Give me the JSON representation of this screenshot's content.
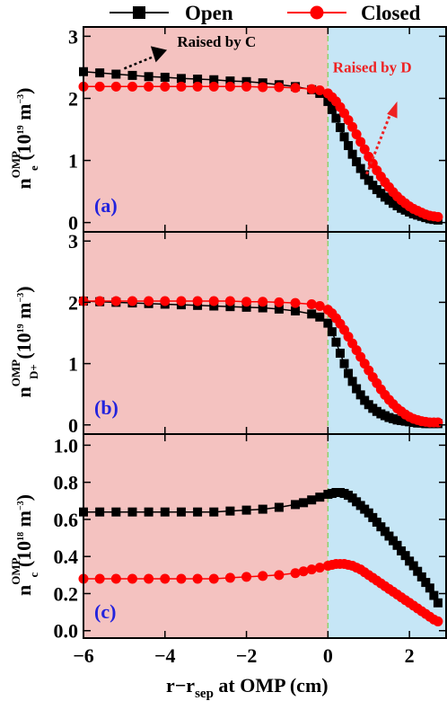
{
  "colors": {
    "open": "#000000",
    "closed": "#ff0000",
    "left_region": "#f4c2c0",
    "right_region": "#c6e6f6",
    "separatrix": "#8bd36b",
    "tag": "#2323dd",
    "anno_c": "#000000",
    "anno_d": "#ee2222"
  },
  "legend": {
    "open": "Open",
    "closed": "Closed"
  },
  "x_axis": {
    "label_main": "r−r",
    "label_sub": "sep",
    "label_tail": " at OMP (cm)",
    "ticks": [
      "−6",
      "−4",
      "−2",
      "0",
      "2"
    ]
  },
  "chart_data": [
    {
      "type": "line",
      "panel": "(a)",
      "xlim": [
        -6,
        2.9
      ],
      "ylim": [
        -0.15,
        3.15
      ],
      "yticks": [
        "0",
        "1",
        "2",
        "3"
      ],
      "ylabel": {
        "main": "n",
        "sub": "e",
        "sup": "OMP",
        "unit": " (10",
        "exp": "19",
        "unit2": " m",
        "exp2": "−3",
        "close": ")"
      },
      "annotations": [
        {
          "text": "Raised by C",
          "color": "black"
        },
        {
          "text": "Raised by D",
          "color": "red"
        }
      ],
      "series": [
        {
          "name": "Open",
          "x": [
            -6,
            -5.6,
            -5.2,
            -4.8,
            -4.4,
            -4.0,
            -3.6,
            -3.2,
            -2.8,
            -2.4,
            -2.0,
            -1.6,
            -1.2,
            -0.8,
            -0.4,
            -0.2,
            0,
            0.1,
            0.2,
            0.3,
            0.4,
            0.5,
            0.6,
            0.7,
            0.8,
            0.9,
            1.0,
            1.1,
            1.2,
            1.3,
            1.4,
            1.5,
            1.6,
            1.7,
            1.8,
            1.9,
            2.0,
            2.1,
            2.2,
            2.3,
            2.4,
            2.5,
            2.6,
            2.7
          ],
          "y": [
            2.43,
            2.41,
            2.39,
            2.37,
            2.35,
            2.34,
            2.32,
            2.31,
            2.3,
            2.28,
            2.27,
            2.25,
            2.22,
            2.19,
            2.14,
            2.08,
            1.95,
            1.82,
            1.68,
            1.53,
            1.38,
            1.24,
            1.1,
            0.98,
            0.87,
            0.77,
            0.68,
            0.6,
            0.53,
            0.47,
            0.41,
            0.36,
            0.31,
            0.27,
            0.23,
            0.2,
            0.17,
            0.14,
            0.12,
            0.1,
            0.08,
            0.06,
            0.05,
            0.04
          ]
        },
        {
          "name": "Closed",
          "x": [
            -6,
            -5.6,
            -5.2,
            -4.8,
            -4.4,
            -4.0,
            -3.6,
            -3.2,
            -2.8,
            -2.4,
            -2.0,
            -1.6,
            -1.2,
            -0.8,
            -0.4,
            -0.2,
            0,
            0.1,
            0.2,
            0.3,
            0.4,
            0.5,
            0.6,
            0.7,
            0.8,
            0.9,
            1.0,
            1.1,
            1.2,
            1.3,
            1.4,
            1.5,
            1.6,
            1.7,
            1.8,
            1.9,
            2.0,
            2.1,
            2.2,
            2.3,
            2.4,
            2.5,
            2.6,
            2.7
          ],
          "y": [
            2.19,
            2.19,
            2.19,
            2.19,
            2.19,
            2.19,
            2.19,
            2.19,
            2.19,
            2.19,
            2.19,
            2.18,
            2.18,
            2.17,
            2.15,
            2.13,
            2.08,
            2.02,
            1.95,
            1.86,
            1.76,
            1.65,
            1.54,
            1.42,
            1.3,
            1.18,
            1.06,
            0.95,
            0.84,
            0.74,
            0.65,
            0.57,
            0.49,
            0.42,
            0.36,
            0.31,
            0.26,
            0.22,
            0.19,
            0.16,
            0.13,
            0.11,
            0.1,
            0.09
          ]
        }
      ]
    },
    {
      "type": "line",
      "panel": "(b)",
      "xlim": [
        -6,
        2.9
      ],
      "ylim": [
        -0.15,
        3.15
      ],
      "yticks": [
        "0",
        "1",
        "2",
        "3"
      ],
      "ylabel": {
        "main": "n",
        "sub": "D+",
        "sup": "OMP",
        "unit": " (10",
        "exp": "19",
        "unit2": " m",
        "exp2": "−3",
        "close": ")"
      },
      "series": [
        {
          "name": "Open",
          "x": [
            -6,
            -5.6,
            -5.2,
            -4.8,
            -4.4,
            -4.0,
            -3.6,
            -3.2,
            -2.8,
            -2.4,
            -2.0,
            -1.6,
            -1.2,
            -0.8,
            -0.4,
            -0.2,
            0,
            0.1,
            0.2,
            0.3,
            0.4,
            0.5,
            0.6,
            0.7,
            0.8,
            0.9,
            1.0,
            1.1,
            1.2,
            1.3,
            1.4,
            1.5,
            1.6,
            1.7,
            1.8,
            1.9,
            2.0,
            2.1,
            2.2,
            2.3,
            2.4,
            2.5,
            2.6,
            2.7
          ],
          "y": [
            2.02,
            2.01,
            2.0,
            1.99,
            1.98,
            1.97,
            1.96,
            1.95,
            1.94,
            1.93,
            1.92,
            1.91,
            1.89,
            1.86,
            1.81,
            1.76,
            1.66,
            1.52,
            1.35,
            1.17,
            1.0,
            0.84,
            0.71,
            0.59,
            0.49,
            0.4,
            0.33,
            0.27,
            0.22,
            0.18,
            0.15,
            0.12,
            0.1,
            0.08,
            0.07,
            0.06,
            0.05,
            0.04,
            0.03,
            0.03,
            0.02,
            0.02,
            0.02,
            0.02
          ]
        },
        {
          "name": "Closed",
          "x": [
            -6,
            -5.6,
            -5.2,
            -4.8,
            -4.4,
            -4.0,
            -3.6,
            -3.2,
            -2.8,
            -2.4,
            -2.0,
            -1.6,
            -1.2,
            -0.8,
            -0.4,
            -0.2,
            0,
            0.1,
            0.2,
            0.3,
            0.4,
            0.5,
            0.6,
            0.7,
            0.8,
            0.9,
            1.0,
            1.1,
            1.2,
            1.3,
            1.4,
            1.5,
            1.6,
            1.7,
            1.8,
            1.9,
            2.0,
            2.1,
            2.2,
            2.3,
            2.4,
            2.5,
            2.6,
            2.7
          ],
          "y": [
            2.02,
            2.02,
            2.02,
            2.02,
            2.02,
            2.02,
            2.02,
            2.02,
            2.02,
            2.02,
            2.01,
            2.01,
            2.0,
            1.99,
            1.97,
            1.94,
            1.88,
            1.82,
            1.74,
            1.65,
            1.55,
            1.44,
            1.33,
            1.22,
            1.11,
            1.0,
            0.89,
            0.78,
            0.68,
            0.58,
            0.49,
            0.41,
            0.34,
            0.27,
            0.22,
            0.17,
            0.13,
            0.1,
            0.08,
            0.06,
            0.05,
            0.04,
            0.04,
            0.04
          ]
        }
      ]
    },
    {
      "type": "line",
      "panel": "(c)",
      "xlim": [
        -6,
        2.9
      ],
      "ylim": [
        -0.04,
        1.06
      ],
      "yticks": [
        "0.0",
        "0.2",
        "0.4",
        "0.6",
        "0.8",
        "1.0"
      ],
      "ylabel": {
        "main": "n",
        "sub": "c",
        "sup": "OMP",
        "unit": " (10",
        "exp": "18",
        "unit2": " m",
        "exp2": "−3",
        "close": ")"
      },
      "series": [
        {
          "name": "Open",
          "x": [
            -6,
            -5.6,
            -5.2,
            -4.8,
            -4.4,
            -4.0,
            -3.6,
            -3.2,
            -2.8,
            -2.4,
            -2.0,
            -1.6,
            -1.2,
            -0.8,
            -0.6,
            -0.4,
            -0.2,
            0,
            0.1,
            0.2,
            0.3,
            0.4,
            0.5,
            0.6,
            0.7,
            0.8,
            0.9,
            1.0,
            1.1,
            1.2,
            1.3,
            1.4,
            1.5,
            1.6,
            1.7,
            1.8,
            1.9,
            2.0,
            2.1,
            2.2,
            2.3,
            2.4,
            2.5,
            2.6,
            2.7
          ],
          "y": [
            0.64,
            0.64,
            0.64,
            0.64,
            0.64,
            0.64,
            0.64,
            0.64,
            0.64,
            0.645,
            0.65,
            0.655,
            0.665,
            0.68,
            0.69,
            0.705,
            0.72,
            0.735,
            0.74,
            0.745,
            0.745,
            0.74,
            0.73,
            0.715,
            0.695,
            0.675,
            0.655,
            0.635,
            0.61,
            0.585,
            0.56,
            0.535,
            0.51,
            0.485,
            0.46,
            0.43,
            0.405,
            0.375,
            0.35,
            0.32,
            0.29,
            0.26,
            0.23,
            0.19,
            0.15
          ]
        },
        {
          "name": "Closed",
          "x": [
            -6,
            -5.6,
            -5.2,
            -4.8,
            -4.4,
            -4.0,
            -3.6,
            -3.2,
            -2.8,
            -2.4,
            -2.0,
            -1.6,
            -1.2,
            -0.8,
            -0.6,
            -0.4,
            -0.2,
            0,
            0.1,
            0.2,
            0.3,
            0.4,
            0.5,
            0.6,
            0.7,
            0.8,
            0.9,
            1.0,
            1.1,
            1.2,
            1.3,
            1.4,
            1.5,
            1.6,
            1.7,
            1.8,
            1.9,
            2.0,
            2.1,
            2.2,
            2.3,
            2.4,
            2.5,
            2.6,
            2.7
          ],
          "y": [
            0.28,
            0.28,
            0.28,
            0.28,
            0.28,
            0.28,
            0.28,
            0.28,
            0.28,
            0.285,
            0.29,
            0.295,
            0.3,
            0.31,
            0.32,
            0.33,
            0.34,
            0.35,
            0.355,
            0.36,
            0.36,
            0.36,
            0.355,
            0.35,
            0.34,
            0.33,
            0.315,
            0.3,
            0.285,
            0.27,
            0.255,
            0.24,
            0.225,
            0.21,
            0.195,
            0.18,
            0.165,
            0.15,
            0.135,
            0.12,
            0.105,
            0.09,
            0.075,
            0.06,
            0.05
          ]
        }
      ]
    }
  ]
}
